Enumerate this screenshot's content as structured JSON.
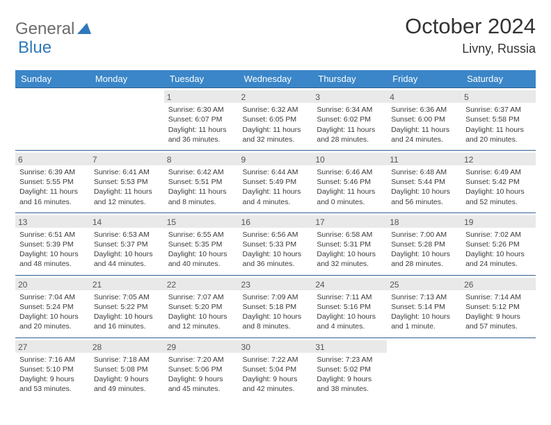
{
  "logo": {
    "general": "General",
    "blue": "Blue"
  },
  "title": "October 2024",
  "location": "Livny, Russia",
  "colors": {
    "header_bg": "#3a86c8",
    "header_text": "#ffffff",
    "daynum_bg": "#e9e9e9",
    "row_border": "#2d5f8f",
    "logo_gray": "#6b6b6b",
    "logo_blue": "#2e79b9"
  },
  "weekdays": [
    "Sunday",
    "Monday",
    "Tuesday",
    "Wednesday",
    "Thursday",
    "Friday",
    "Saturday"
  ],
  "weeks": [
    [
      null,
      null,
      {
        "n": "1",
        "sr": "Sunrise: 6:30 AM",
        "ss": "Sunset: 6:07 PM",
        "dl": "Daylight: 11 hours and 36 minutes."
      },
      {
        "n": "2",
        "sr": "Sunrise: 6:32 AM",
        "ss": "Sunset: 6:05 PM",
        "dl": "Daylight: 11 hours and 32 minutes."
      },
      {
        "n": "3",
        "sr": "Sunrise: 6:34 AM",
        "ss": "Sunset: 6:02 PM",
        "dl": "Daylight: 11 hours and 28 minutes."
      },
      {
        "n": "4",
        "sr": "Sunrise: 6:36 AM",
        "ss": "Sunset: 6:00 PM",
        "dl": "Daylight: 11 hours and 24 minutes."
      },
      {
        "n": "5",
        "sr": "Sunrise: 6:37 AM",
        "ss": "Sunset: 5:58 PM",
        "dl": "Daylight: 11 hours and 20 minutes."
      }
    ],
    [
      {
        "n": "6",
        "sr": "Sunrise: 6:39 AM",
        "ss": "Sunset: 5:55 PM",
        "dl": "Daylight: 11 hours and 16 minutes."
      },
      {
        "n": "7",
        "sr": "Sunrise: 6:41 AM",
        "ss": "Sunset: 5:53 PM",
        "dl": "Daylight: 11 hours and 12 minutes."
      },
      {
        "n": "8",
        "sr": "Sunrise: 6:42 AM",
        "ss": "Sunset: 5:51 PM",
        "dl": "Daylight: 11 hours and 8 minutes."
      },
      {
        "n": "9",
        "sr": "Sunrise: 6:44 AM",
        "ss": "Sunset: 5:49 PM",
        "dl": "Daylight: 11 hours and 4 minutes."
      },
      {
        "n": "10",
        "sr": "Sunrise: 6:46 AM",
        "ss": "Sunset: 5:46 PM",
        "dl": "Daylight: 11 hours and 0 minutes."
      },
      {
        "n": "11",
        "sr": "Sunrise: 6:48 AM",
        "ss": "Sunset: 5:44 PM",
        "dl": "Daylight: 10 hours and 56 minutes."
      },
      {
        "n": "12",
        "sr": "Sunrise: 6:49 AM",
        "ss": "Sunset: 5:42 PM",
        "dl": "Daylight: 10 hours and 52 minutes."
      }
    ],
    [
      {
        "n": "13",
        "sr": "Sunrise: 6:51 AM",
        "ss": "Sunset: 5:39 PM",
        "dl": "Daylight: 10 hours and 48 minutes."
      },
      {
        "n": "14",
        "sr": "Sunrise: 6:53 AM",
        "ss": "Sunset: 5:37 PM",
        "dl": "Daylight: 10 hours and 44 minutes."
      },
      {
        "n": "15",
        "sr": "Sunrise: 6:55 AM",
        "ss": "Sunset: 5:35 PM",
        "dl": "Daylight: 10 hours and 40 minutes."
      },
      {
        "n": "16",
        "sr": "Sunrise: 6:56 AM",
        "ss": "Sunset: 5:33 PM",
        "dl": "Daylight: 10 hours and 36 minutes."
      },
      {
        "n": "17",
        "sr": "Sunrise: 6:58 AM",
        "ss": "Sunset: 5:31 PM",
        "dl": "Daylight: 10 hours and 32 minutes."
      },
      {
        "n": "18",
        "sr": "Sunrise: 7:00 AM",
        "ss": "Sunset: 5:28 PM",
        "dl": "Daylight: 10 hours and 28 minutes."
      },
      {
        "n": "19",
        "sr": "Sunrise: 7:02 AM",
        "ss": "Sunset: 5:26 PM",
        "dl": "Daylight: 10 hours and 24 minutes."
      }
    ],
    [
      {
        "n": "20",
        "sr": "Sunrise: 7:04 AM",
        "ss": "Sunset: 5:24 PM",
        "dl": "Daylight: 10 hours and 20 minutes."
      },
      {
        "n": "21",
        "sr": "Sunrise: 7:05 AM",
        "ss": "Sunset: 5:22 PM",
        "dl": "Daylight: 10 hours and 16 minutes."
      },
      {
        "n": "22",
        "sr": "Sunrise: 7:07 AM",
        "ss": "Sunset: 5:20 PM",
        "dl": "Daylight: 10 hours and 12 minutes."
      },
      {
        "n": "23",
        "sr": "Sunrise: 7:09 AM",
        "ss": "Sunset: 5:18 PM",
        "dl": "Daylight: 10 hours and 8 minutes."
      },
      {
        "n": "24",
        "sr": "Sunrise: 7:11 AM",
        "ss": "Sunset: 5:16 PM",
        "dl": "Daylight: 10 hours and 4 minutes."
      },
      {
        "n": "25",
        "sr": "Sunrise: 7:13 AM",
        "ss": "Sunset: 5:14 PM",
        "dl": "Daylight: 10 hours and 1 minute."
      },
      {
        "n": "26",
        "sr": "Sunrise: 7:14 AM",
        "ss": "Sunset: 5:12 PM",
        "dl": "Daylight: 9 hours and 57 minutes."
      }
    ],
    [
      {
        "n": "27",
        "sr": "Sunrise: 7:16 AM",
        "ss": "Sunset: 5:10 PM",
        "dl": "Daylight: 9 hours and 53 minutes."
      },
      {
        "n": "28",
        "sr": "Sunrise: 7:18 AM",
        "ss": "Sunset: 5:08 PM",
        "dl": "Daylight: 9 hours and 49 minutes."
      },
      {
        "n": "29",
        "sr": "Sunrise: 7:20 AM",
        "ss": "Sunset: 5:06 PM",
        "dl": "Daylight: 9 hours and 45 minutes."
      },
      {
        "n": "30",
        "sr": "Sunrise: 7:22 AM",
        "ss": "Sunset: 5:04 PM",
        "dl": "Daylight: 9 hours and 42 minutes."
      },
      {
        "n": "31",
        "sr": "Sunrise: 7:23 AM",
        "ss": "Sunset: 5:02 PM",
        "dl": "Daylight: 9 hours and 38 minutes."
      },
      null,
      null
    ]
  ]
}
